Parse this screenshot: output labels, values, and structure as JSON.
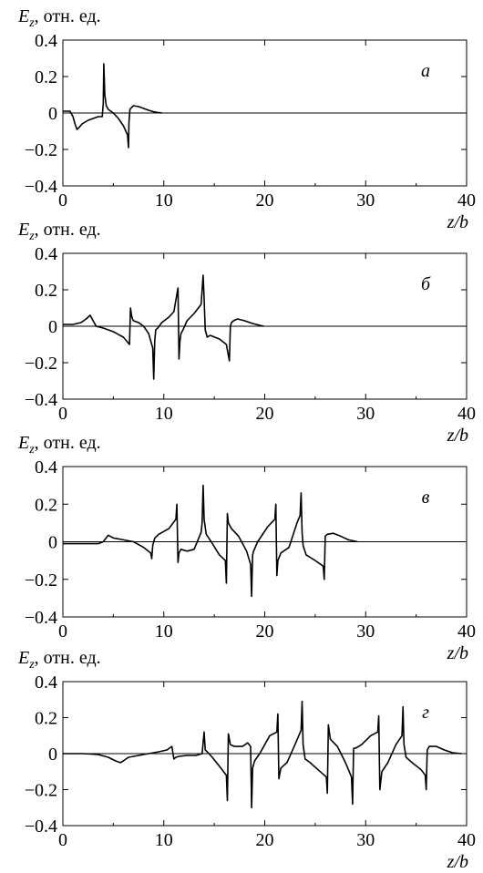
{
  "chart_data": [
    {
      "type": "line",
      "panel_letter": "а",
      "ylabel": {
        "main": "E",
        "sub": "z",
        "rest": ", отн. ед."
      },
      "xlabel": {
        "var": "z/b"
      },
      "xlim": [
        0,
        40
      ],
      "ylim": [
        -0.4,
        0.4
      ],
      "xticks": [
        "0",
        "10",
        "20",
        "30",
        "40"
      ],
      "yticks": [
        "−0.4",
        "−0.2",
        "0",
        "0.2",
        "0.4"
      ],
      "grid": false,
      "series": [
        {
          "x": [
            0,
            0.7,
            1.0,
            1.2,
            1.4,
            1.6,
            1.9,
            2.5,
            3.0,
            3.5,
            3.9,
            4.0,
            4.05,
            4.15,
            4.3,
            4.5,
            5.0,
            5.5,
            6.0,
            6.4,
            6.5,
            6.55,
            6.65,
            6.8,
            7.0,
            7.5,
            8.0,
            8.5,
            9.0,
            9.5,
            9.8
          ],
          "y": [
            0.01,
            0.01,
            -0.02,
            -0.06,
            -0.09,
            -0.08,
            -0.06,
            -0.04,
            -0.03,
            -0.02,
            -0.02,
            0.05,
            0.27,
            0.1,
            0.04,
            0.02,
            0.0,
            -0.03,
            -0.07,
            -0.12,
            -0.19,
            -0.05,
            0.02,
            0.03,
            0.04,
            0.035,
            0.025,
            0.015,
            0.007,
            0.002,
            0.0
          ]
        }
      ]
    },
    {
      "type": "line",
      "panel_letter": "б",
      "ylabel": {
        "main": "E",
        "sub": "z",
        "rest": ", отн. ед."
      },
      "xlabel": {
        "var": "z/b"
      },
      "xlim": [
        0,
        40
      ],
      "ylim": [
        -0.4,
        0.4
      ],
      "xticks": [
        "0",
        "10",
        "20",
        "30",
        "40"
      ],
      "yticks": [
        "−0.4",
        "−0.2",
        "0",
        "0.2",
        "0.4"
      ],
      "grid": false,
      "series": [
        {
          "x": [
            0,
            1.0,
            1.8,
            2.3,
            2.7,
            3.0,
            3.3,
            4.0,
            5.0,
            6.0,
            6.6,
            6.7,
            6.8,
            6.9,
            7.0,
            7.5,
            8.0,
            8.5,
            8.9,
            9.0,
            9.1,
            9.2,
            9.4,
            9.8,
            10.5,
            11.0,
            11.4,
            11.5,
            11.6,
            11.7,
            11.9,
            12.3,
            13.0,
            13.7,
            13.9,
            14.0,
            14.1,
            14.3,
            14.6,
            15.5,
            16.2,
            16.5,
            16.6,
            16.7,
            16.9,
            17.3,
            18.0,
            18.8,
            19.5,
            19.9
          ],
          "y": [
            0.01,
            0.01,
            0.02,
            0.04,
            0.06,
            0.03,
            0.0,
            -0.01,
            -0.03,
            -0.06,
            -0.1,
            0.1,
            0.06,
            0.04,
            0.03,
            0.02,
            0.0,
            -0.04,
            -0.12,
            -0.29,
            -0.08,
            -0.02,
            -0.01,
            0.02,
            0.05,
            0.08,
            0.21,
            -0.18,
            -0.08,
            -0.04,
            -0.02,
            0.03,
            0.07,
            0.12,
            0.28,
            0.15,
            -0.02,
            -0.06,
            -0.05,
            -0.07,
            -0.1,
            -0.19,
            0.0,
            0.02,
            0.03,
            0.04,
            0.03,
            0.015,
            0.005,
            0.0
          ]
        }
      ]
    },
    {
      "type": "line",
      "panel_letter": "в",
      "ylabel": {
        "main": "E",
        "sub": "z",
        "rest": ", отн. ед."
      },
      "xlabel": {
        "var": "z/b"
      },
      "xlim": [
        0,
        40
      ],
      "ylim": [
        -0.4,
        0.4
      ],
      "xticks": [
        "0",
        "10",
        "20",
        "30",
        "40"
      ],
      "yticks": [
        "−0.4",
        "−0.2",
        "0",
        "0.2",
        "0.4"
      ],
      "grid": false,
      "series": [
        {
          "x": [
            0,
            2.0,
            3.5,
            4.0,
            4.5,
            5.0,
            6.0,
            7.0,
            8.0,
            8.7,
            8.8,
            8.9,
            9.1,
            9.5,
            10.5,
            11.2,
            11.3,
            11.4,
            11.5,
            11.7,
            12.3,
            13.0,
            13.7,
            13.8,
            13.9,
            14.0,
            14.2,
            14.7,
            15.5,
            16.1,
            16.2,
            16.3,
            16.4,
            16.7,
            17.4,
            18.2,
            18.6,
            18.7,
            18.8,
            18.9,
            19.3,
            20.3,
            21.0,
            21.1,
            21.2,
            21.3,
            21.6,
            22.4,
            23.2,
            23.5,
            23.6,
            23.7,
            23.8,
            24.1,
            25.0,
            25.8,
            25.9,
            26.0,
            26.2,
            26.8,
            27.5,
            28.3,
            29.2
          ],
          "y": [
            -0.01,
            -0.01,
            -0.01,
            0.0,
            0.035,
            0.02,
            0.01,
            0.0,
            -0.03,
            -0.06,
            -0.09,
            -0.02,
            0.02,
            0.04,
            0.07,
            0.12,
            0.2,
            -0.11,
            -0.06,
            -0.04,
            -0.05,
            -0.04,
            0.05,
            0.1,
            0.3,
            0.12,
            0.04,
            0.0,
            -0.07,
            -0.1,
            -0.22,
            0.15,
            0.1,
            0.07,
            0.03,
            -0.05,
            -0.12,
            -0.29,
            -0.07,
            -0.05,
            0.0,
            0.08,
            0.12,
            0.2,
            -0.18,
            -0.1,
            -0.06,
            -0.03,
            0.1,
            0.14,
            0.26,
            0.05,
            -0.02,
            -0.07,
            -0.1,
            -0.13,
            -0.2,
            0.03,
            0.04,
            0.045,
            0.03,
            0.01,
            0.0
          ]
        }
      ]
    },
    {
      "type": "line",
      "panel_letter": "г",
      "ylabel": {
        "main": "E",
        "sub": "z",
        "rest": ", отн. ед."
      },
      "xlabel": {
        "var": "z/b"
      },
      "xlim": [
        0,
        40
      ],
      "ylim": [
        -0.4,
        0.4
      ],
      "xticks": [
        "0",
        "10",
        "20",
        "30",
        "40"
      ],
      "yticks": [
        "−0.4",
        "−0.2",
        "0",
        "0.2",
        "0.4"
      ],
      "grid": false,
      "series": [
        {
          "x": [
            0,
            2.0,
            3.5,
            4.5,
            5.2,
            5.7,
            6.0,
            6.5,
            7.5,
            8.5,
            9.5,
            10.3,
            10.8,
            11.0,
            11.2,
            11.5,
            12.3,
            13.2,
            13.8,
            14.0,
            14.1,
            14.3,
            14.8,
            15.5,
            16.2,
            16.3,
            16.4,
            16.6,
            17.0,
            17.8,
            18.3,
            18.6,
            18.7,
            18.8,
            19.0,
            19.5,
            20.5,
            21.2,
            21.3,
            21.4,
            21.6,
            22.2,
            23.0,
            23.6,
            23.7,
            23.8,
            24.0,
            24.5,
            25.5,
            26.1,
            26.2,
            26.3,
            26.5,
            27.2,
            28.0,
            28.6,
            28.7,
            28.8,
            29.0,
            29.6,
            30.5,
            31.2,
            31.3,
            31.4,
            31.6,
            32.2,
            33.0,
            33.6,
            33.7,
            33.8,
            34.0,
            34.6,
            35.5,
            35.9,
            36.0,
            36.1,
            36.3,
            37.0,
            37.8,
            38.6,
            39.5
          ],
          "y": [
            0.0,
            0.0,
            -0.005,
            -0.02,
            -0.04,
            -0.05,
            -0.04,
            -0.02,
            -0.01,
            0.0,
            0.01,
            0.02,
            0.04,
            -0.03,
            -0.02,
            -0.015,
            -0.01,
            -0.01,
            0.0,
            0.12,
            0.02,
            0.01,
            -0.02,
            -0.07,
            -0.12,
            -0.26,
            0.11,
            0.05,
            0.04,
            0.04,
            0.06,
            0.04,
            -0.3,
            -0.08,
            -0.04,
            0.0,
            0.1,
            0.12,
            0.22,
            -0.14,
            -0.08,
            -0.05,
            0.05,
            0.13,
            0.29,
            0.05,
            -0.03,
            -0.05,
            -0.1,
            -0.13,
            -0.22,
            0.16,
            0.08,
            0.04,
            -0.05,
            -0.13,
            -0.28,
            0.03,
            0.03,
            0.05,
            0.1,
            0.12,
            0.21,
            -0.2,
            -0.1,
            -0.05,
            0.05,
            0.1,
            0.26,
            0.05,
            -0.02,
            -0.05,
            -0.09,
            -0.12,
            -0.2,
            0.02,
            0.04,
            0.04,
            0.02,
            0.005,
            0.0
          ]
        }
      ]
    }
  ]
}
